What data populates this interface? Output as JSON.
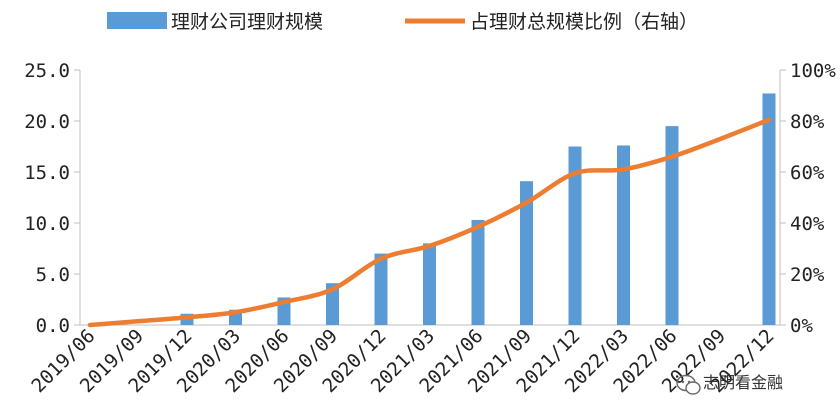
{
  "chart_data": {
    "type": "bar+line",
    "categories": [
      "2019/06",
      "2019/09",
      "2019/12",
      "2020/03",
      "2020/06",
      "2020/09",
      "2020/12",
      "2021/03",
      "2021/06",
      "2021/09",
      "2021/12",
      "2022/03",
      "2022/06",
      "2022/09",
      "2022/12"
    ],
    "series": [
      {
        "name": "理财公司理财规模",
        "type": "bar",
        "axis": "left",
        "color": "#5B9BD5",
        "values": [
          0,
          0,
          1.1,
          1.5,
          2.7,
          4.1,
          7.0,
          8.0,
          10.3,
          14.1,
          17.5,
          17.6,
          19.5,
          null,
          22.7
        ]
      },
      {
        "name": "占理财总规模比例（右轴）",
        "type": "line",
        "axis": "right",
        "color": "#ED7D31",
        "values": [
          0,
          1.5,
          3.0,
          5.0,
          9.0,
          14.0,
          26.0,
          31.0,
          38.5,
          48.0,
          59.5,
          61.0,
          66.0,
          73.0,
          80.5
        ]
      }
    ],
    "y_left": {
      "min": 0,
      "max": 25,
      "ticks": [
        "0.0",
        "5.0",
        "10.0",
        "15.0",
        "20.0",
        "25.0"
      ]
    },
    "y_right": {
      "min": 0,
      "max": 100,
      "ticks": [
        "0%",
        "20%",
        "40%",
        "60%",
        "80%",
        "100%"
      ]
    },
    "legend": "top",
    "grid": false
  },
  "watermark": {
    "text": "志明看金融",
    "icon": "wechat-icon"
  }
}
